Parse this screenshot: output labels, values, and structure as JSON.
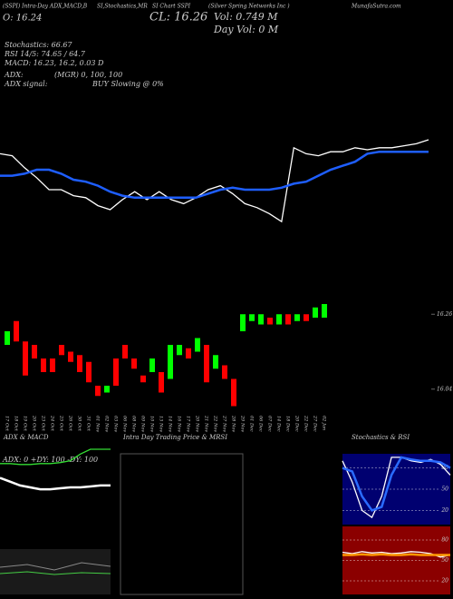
{
  "header": {
    "texts": [
      "(SSPI) Intra-Day ADX,MACD,B",
      "SI,Stochastics,MR",
      "SI Chart SSPI",
      "(Silver Spring Networks Inc )",
      "MunafaSutra.com",
      "O: 16.24",
      "CL: 16.26",
      "Vol: 0.749 M",
      "Day Vol: 0 M",
      "Stochastics: 66.67",
      "RSI 14/5: 74.65 / 64.7",
      "MACD: 16.23, 16.2, 0.03 D",
      "ADX:",
      "(MGR) 0, 100, 100",
      "ADX signal:",
      "BUY Slowing @ 0%"
    ]
  },
  "chart_data": [
    {
      "type": "line",
      "ylim": [
        15.5,
        17.0
      ],
      "categories": [
        "17 Oct",
        "18 Oct",
        "19 Oct",
        "20 Oct",
        "23 Oct",
        "24 Oct",
        "25 Oct",
        "26 Oct",
        "30 Oct",
        "31 Oct",
        "01 Nov",
        "02 Nov",
        "03 Nov",
        "06 Nov",
        "08 Nov",
        "09 Nov",
        "10 Nov",
        "13 Nov",
        "14 Nov",
        "16 Nov",
        "17 Nov",
        "20 Nov",
        "21 Nov",
        "22 Nov",
        "27 Nov",
        "28 Nov",
        "29 Nov",
        "01 Dec",
        "06 Dec",
        "07 Dec",
        "14 Dec",
        "18 Dec",
        "20 Dec",
        "22 Dec",
        "27 Dec",
        "02 Jan"
      ],
      "series": [
        {
          "color": "#ffffff",
          "values": [
            16.23,
            16.22,
            16.16,
            16.11,
            16.05,
            16.05,
            16.02,
            16.01,
            15.97,
            15.95,
            16.0,
            16.04,
            16.0,
            16.04,
            16.0,
            15.98,
            16.01,
            16.05,
            16.07,
            16.03,
            15.98,
            15.96,
            15.93,
            15.89,
            16.26,
            16.23,
            16.22,
            16.24,
            16.24,
            16.26,
            16.25,
            16.26,
            16.26,
            16.27,
            16.28,
            16.3
          ]
        },
        {
          "color": "#1e5eff",
          "values": [
            16.12,
            16.12,
            16.13,
            16.15,
            16.15,
            16.13,
            16.1,
            16.09,
            16.07,
            16.04,
            16.02,
            16.01,
            16.01,
            16.01,
            16.01,
            16.01,
            16.01,
            16.03,
            16.05,
            16.06,
            16.05,
            16.05,
            16.05,
            16.06,
            16.08,
            16.09,
            16.12,
            16.15,
            16.17,
            16.19,
            16.23,
            16.24,
            16.24,
            16.24,
            16.24,
            16.24
          ]
        }
      ]
    },
    {
      "type": "candlestick",
      "ylim": [
        15.97,
        16.29
      ],
      "yticks": [
        16.26,
        16.04
      ],
      "up_color": "#00ff00",
      "down_color": "#ff0000",
      "open": [
        16.17,
        16.24,
        16.18,
        16.17,
        16.13,
        16.13,
        16.17,
        16.15,
        16.14,
        16.12,
        16.05,
        16.03,
        16.13,
        16.17,
        16.13,
        16.08,
        16.09,
        16.09,
        16.07,
        16.14,
        16.16,
        16.15,
        16.17,
        16.1,
        16.11,
        16.07,
        16.21,
        16.24,
        16.23,
        16.25,
        16.23,
        16.26,
        16.24,
        16.26,
        16.25,
        16.25
      ],
      "close": [
        16.21,
        16.18,
        16.08,
        16.13,
        16.09,
        16.09,
        16.14,
        16.12,
        16.09,
        16.06,
        16.02,
        16.05,
        16.05,
        16.13,
        16.1,
        16.06,
        16.13,
        16.03,
        16.17,
        16.17,
        16.13,
        16.19,
        16.06,
        16.14,
        16.07,
        15.99,
        16.26,
        16.26,
        16.26,
        16.23,
        16.26,
        16.23,
        16.26,
        16.24,
        16.28,
        16.29
      ]
    },
    {
      "type": "line",
      "title": "ADX & MACD",
      "subtitle": "ADX: 0  +DY: 100  -DY: 100",
      "ylim": [
        0,
        100
      ],
      "series": [
        {
          "color": "#33dd33",
          "values": [
            85,
            85,
            84,
            84,
            85,
            85,
            86,
            88,
            95,
            100,
            100,
            100
          ]
        },
        {
          "color": "#ffffff",
          "values": [
            70,
            66,
            62,
            60,
            58,
            58,
            59,
            60,
            60,
            61,
            62,
            62
          ]
        }
      ]
    },
    {
      "type": "panel",
      "title": "Intra Day Trading Price & MRSI"
    },
    {
      "type": "line",
      "title": "Stochastics & RSI",
      "ylim": [
        0,
        100
      ],
      "yticks": [
        80,
        50,
        20
      ],
      "background": "#000070",
      "series": [
        {
          "color": "#ffffff",
          "values": [
            90,
            60,
            20,
            10,
            40,
            95,
            95,
            90,
            88,
            92,
            85,
            70
          ]
        },
        {
          "color": "#2a6bff",
          "values": [
            80,
            75,
            40,
            20,
            25,
            70,
            95,
            92,
            90,
            90,
            88,
            80
          ]
        }
      ]
    },
    {
      "type": "line",
      "ylim": [
        0,
        100
      ],
      "yticks": [
        80,
        50,
        20
      ],
      "background": "#8b0000",
      "series": [
        {
          "color": "#ffffff",
          "values": [
            62,
            60,
            63,
            61,
            62,
            60,
            61,
            63,
            62,
            60,
            55,
            58
          ]
        },
        {
          "color": "#ff9900",
          "values": [
            58,
            58,
            59,
            58,
            59,
            58,
            58,
            59,
            58,
            58,
            58,
            58
          ]
        }
      ]
    }
  ]
}
